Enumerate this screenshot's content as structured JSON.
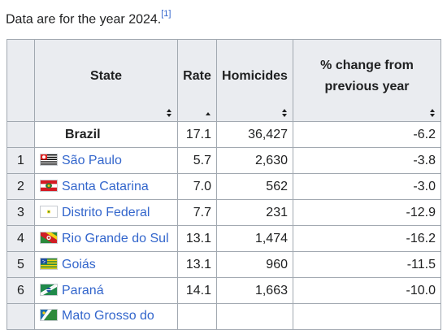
{
  "caption": {
    "text": "Data are for the year 2024.",
    "ref": "[1]"
  },
  "headers": {
    "rank": "",
    "state": "State",
    "rate": "Rate",
    "homicides": "Homicides",
    "change": "% change from previous year"
  },
  "total": {
    "state": "Brazil",
    "rate": "17.1",
    "homicides": "36,427",
    "change": "-6.2"
  },
  "rows": [
    {
      "rank": "1",
      "state": "São Paulo",
      "rate": "5.7",
      "homicides": "2,630",
      "change": "-3.8",
      "flag_icon": "sao-paulo-flag-icon"
    },
    {
      "rank": "2",
      "state": "Santa Catarina",
      "rate": "7.0",
      "homicides": "562",
      "change": "-3.0",
      "flag_icon": "santa-catarina-flag-icon"
    },
    {
      "rank": "3",
      "state": "Distrito Federal",
      "rate": "7.7",
      "homicides": "231",
      "change": "-12.9",
      "flag_icon": "distrito-federal-flag-icon"
    },
    {
      "rank": "4",
      "state": "Rio Grande do Sul",
      "rate": "13.1",
      "homicides": "1,474",
      "change": "-16.2",
      "flag_icon": "rio-grande-do-sul-flag-icon"
    },
    {
      "rank": "5",
      "state": "Goiás",
      "rate": "13.1",
      "homicides": "960",
      "change": "-11.5",
      "flag_icon": "goias-flag-icon"
    },
    {
      "rank": "6",
      "state": "Paraná",
      "rate": "14.1",
      "homicides": "1,663",
      "change": "-10.0",
      "flag_icon": "parana-flag-icon"
    },
    {
      "rank": "",
      "state": "Mato Grosso do",
      "rate": "",
      "homicides": "",
      "change": "",
      "flag_icon": "mato-grosso-do-sul-flag-icon"
    }
  ],
  "colors": {
    "link": "#3366cc",
    "header_bg": "#eaecf0",
    "border": "#a2a9b1"
  }
}
